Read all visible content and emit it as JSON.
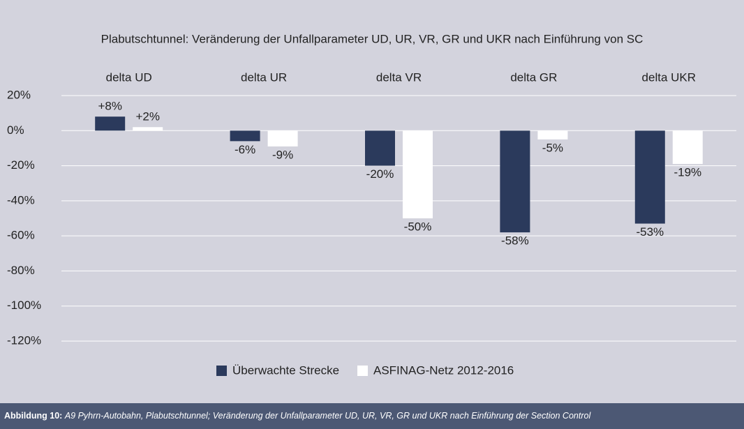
{
  "chart_data": {
    "type": "bar",
    "title": "Plabutschtunnel: Veränderung der Unfallparameter UD, UR, VR, GR und UKR nach Einführung von SC",
    "categories": [
      "delta UD",
      "delta UR",
      "delta VR",
      "delta GR",
      "delta UKR"
    ],
    "series": [
      {
        "name": "Überwachte Strecke",
        "color": "#2b3a5c",
        "values": [
          8,
          -6,
          -20,
          -58,
          -53
        ],
        "value_labels": [
          "+8%",
          "-6%",
          "-20%",
          "-58%",
          "-53%"
        ]
      },
      {
        "name": "ASFINAG-Netz 2012-2016",
        "color": "#ffffff",
        "values": [
          2,
          -9,
          -50,
          -5,
          -19
        ],
        "value_labels": [
          "+2%",
          "-9%",
          "-50%",
          "-5%",
          "-19%"
        ]
      }
    ],
    "ylim": [
      -120,
      20
    ],
    "yticks": [
      {
        "value": 20,
        "label": "20%"
      },
      {
        "value": 0,
        "label": "0%"
      },
      {
        "value": -20,
        "label": "-20%"
      },
      {
        "value": -40,
        "label": "-40%"
      },
      {
        "value": -60,
        "label": "-60%"
      },
      {
        "value": -80,
        "label": "-80%"
      },
      {
        "value": -100,
        "label": "-100%"
      },
      {
        "value": -120,
        "label": "-120%"
      }
    ],
    "grid": true,
    "legend": "bottom"
  },
  "caption": {
    "label": "Abbildung 10:",
    "text": "A9 Pyhrn-Autobahn, Plabutschtunnel; Veränderung der Unfallparameter UD, UR, VR, GR und UKR nach Einführung der Section Control"
  }
}
